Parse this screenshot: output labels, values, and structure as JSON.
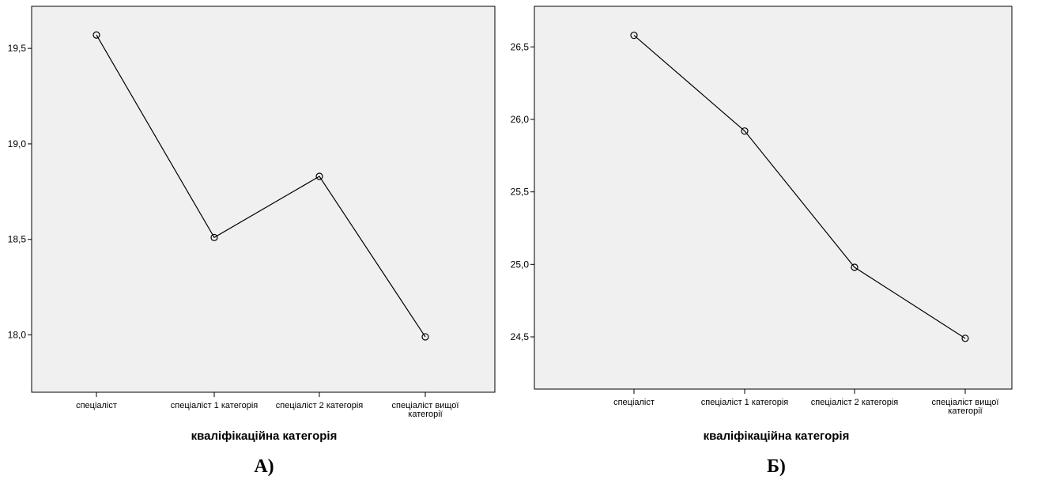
{
  "chart_data": [
    {
      "type": "line",
      "panel_label": "А)",
      "xlabel": "кваліфікаційна категорія",
      "ylabel": "",
      "categories": [
        [
          "спеціаліст"
        ],
        [
          "спеціаліст 1 категорія"
        ],
        [
          "спеціаліст 2 категорія"
        ],
        [
          "спеціаліст вищої",
          "категорії"
        ]
      ],
      "values": [
        19.57,
        18.51,
        18.83,
        17.99
      ],
      "ylim": [
        17.7,
        19.72
      ],
      "yticks": [
        18.0,
        18.5,
        19.0,
        19.5
      ],
      "ytick_labels": [
        "18,0",
        "18,5",
        "19,0",
        "19,5"
      ],
      "plot_background": "#f0f0f0",
      "line_color": "#000000",
      "marker": "open-circle",
      "grid": false
    },
    {
      "type": "line",
      "panel_label": "Б)",
      "xlabel": "кваліфікаційна категорія",
      "ylabel": "",
      "categories": [
        [
          "спеціаліст"
        ],
        [
          "спеціаліст 1 категорія"
        ],
        [
          "спеціаліст 2 категорія"
        ],
        [
          "спеціаліст вищої",
          "категорії"
        ]
      ],
      "values": [
        26.58,
        25.92,
        24.98,
        24.49
      ],
      "ylim": [
        24.14,
        26.78
      ],
      "yticks": [
        24.5,
        25.0,
        25.5,
        26.0,
        26.5
      ],
      "ytick_labels": [
        "24,5",
        "25,0",
        "25,5",
        "26,0",
        "26,5"
      ],
      "plot_background": "#f0f0f0",
      "line_color": "#000000",
      "marker": "open-circle",
      "grid": false
    }
  ]
}
